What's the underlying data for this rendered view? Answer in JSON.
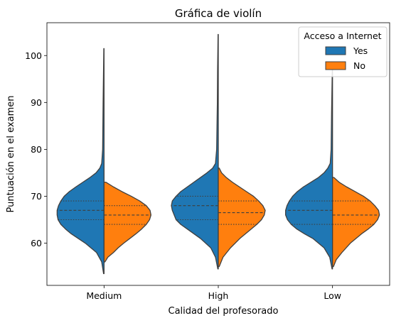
{
  "chart_data": {
    "type": "violin",
    "title": "Gráfica de violín",
    "xlabel": "Calidad del profesorado",
    "ylabel": "Puntuación en el examen",
    "categories": [
      "Medium",
      "High",
      "Low"
    ],
    "ylim": [
      51,
      107
    ],
    "yticks": [
      60,
      70,
      80,
      90,
      100
    ],
    "grid": false,
    "split": true,
    "inner": "quartile",
    "legend": {
      "title": "Acceso a Internet",
      "placement": "top-right",
      "entries": [
        {
          "label": "Yes",
          "color": "#1f77b4"
        },
        {
          "label": "No",
          "color": "#ff7f0e"
        }
      ]
    },
    "series": [
      {
        "name": "Yes",
        "color": "#1f77b4",
        "side": "left",
        "violins": [
          {
            "category": "Medium",
            "min": 53.5,
            "q1": 65,
            "median": 67,
            "q3": 69,
            "max": 101.5,
            "profile": [
              [
                53.5,
                0.01
              ],
              [
                56,
                0.05
              ],
              [
                58,
                0.16
              ],
              [
                60,
                0.4
              ],
              [
                62,
                0.7
              ],
              [
                63,
                0.82
              ],
              [
                64,
                0.92
              ],
              [
                65,
                0.98
              ],
              [
                66,
                1.0
              ],
              [
                67,
                1.0
              ],
              [
                68,
                0.97
              ],
              [
                69,
                0.92
              ],
              [
                70,
                0.85
              ],
              [
                71,
                0.74
              ],
              [
                72,
                0.6
              ],
              [
                73,
                0.45
              ],
              [
                74,
                0.3
              ],
              [
                75,
                0.17
              ],
              [
                76,
                0.09
              ],
              [
                77,
                0.05
              ],
              [
                80,
                0.03
              ],
              [
                90,
                0.02
              ],
              [
                101.5,
                0.005
              ]
            ]
          },
          {
            "category": "High",
            "min": 54.5,
            "q1": 65,
            "median": 68,
            "q3": 70,
            "max": 104.5,
            "profile": [
              [
                54.5,
                0.01
              ],
              [
                57,
                0.06
              ],
              [
                59,
                0.16
              ],
              [
                61,
                0.38
              ],
              [
                63,
                0.66
              ],
              [
                64,
                0.8
              ],
              [
                65,
                0.9
              ],
              [
                66,
                0.94
              ],
              [
                67,
                0.98
              ],
              [
                68,
                1.0
              ],
              [
                69,
                0.98
              ],
              [
                70,
                0.9
              ],
              [
                71,
                0.8
              ],
              [
                72,
                0.66
              ],
              [
                73,
                0.52
              ],
              [
                74,
                0.38
              ],
              [
                75,
                0.24
              ],
              [
                76,
                0.12
              ],
              [
                77,
                0.06
              ],
              [
                80,
                0.035
              ],
              [
                90,
                0.02
              ],
              [
                97,
                0.015
              ],
              [
                104.5,
                0.005
              ]
            ]
          },
          {
            "category": "Low",
            "min": 54.5,
            "q1": 64,
            "median": 67,
            "q3": 69,
            "max": 97,
            "profile": [
              [
                54.5,
                0.01
              ],
              [
                57,
                0.06
              ],
              [
                59,
                0.18
              ],
              [
                61,
                0.42
              ],
              [
                62,
                0.6
              ],
              [
                63,
                0.76
              ],
              [
                64,
                0.88
              ],
              [
                65,
                0.96
              ],
              [
                66,
                1.0
              ],
              [
                67,
                1.0
              ],
              [
                68,
                0.97
              ],
              [
                69,
                0.92
              ],
              [
                70,
                0.85
              ],
              [
                71,
                0.75
              ],
              [
                72,
                0.62
              ],
              [
                73,
                0.46
              ],
              [
                74,
                0.3
              ],
              [
                75,
                0.18
              ],
              [
                76,
                0.1
              ],
              [
                77,
                0.05
              ],
              [
                80,
                0.03
              ],
              [
                88,
                0.02
              ],
              [
                97,
                0.005
              ]
            ]
          }
        ]
      },
      {
        "name": "No",
        "color": "#ff7f0e",
        "side": "right",
        "violins": [
          {
            "category": "Medium",
            "min": 56,
            "q1": 64,
            "median": 66,
            "q3": 68,
            "max": 73,
            "profile": [
              [
                56,
                0.02
              ],
              [
                57,
                0.08
              ],
              [
                58,
                0.2
              ],
              [
                59,
                0.3
              ],
              [
                60,
                0.42
              ],
              [
                61,
                0.55
              ],
              [
                62,
                0.68
              ],
              [
                63,
                0.8
              ],
              [
                64,
                0.9
              ],
              [
                65,
                0.97
              ],
              [
                66,
                1.0
              ],
              [
                67,
                0.98
              ],
              [
                68,
                0.9
              ],
              [
                69,
                0.76
              ],
              [
                70,
                0.58
              ],
              [
                71,
                0.38
              ],
              [
                72,
                0.2
              ],
              [
                73,
                0.04
              ]
            ]
          },
          {
            "category": "High",
            "min": 55,
            "q1": 64,
            "median": 66.5,
            "q3": 69,
            "max": 76,
            "profile": [
              [
                55,
                0.02
              ],
              [
                57,
                0.1
              ],
              [
                59,
                0.26
              ],
              [
                61,
                0.46
              ],
              [
                63,
                0.7
              ],
              [
                64,
                0.82
              ],
              [
                65,
                0.92
              ],
              [
                66,
                0.98
              ],
              [
                67,
                1.0
              ],
              [
                68,
                0.95
              ],
              [
                69,
                0.86
              ],
              [
                70,
                0.75
              ],
              [
                71,
                0.6
              ],
              [
                72,
                0.45
              ],
              [
                73,
                0.3
              ],
              [
                74,
                0.17
              ],
              [
                75,
                0.07
              ],
              [
                76,
                0.02
              ]
            ]
          },
          {
            "category": "Low",
            "min": 55,
            "q1": 64,
            "median": 66,
            "q3": 69,
            "max": 74,
            "profile": [
              [
                55,
                0.02
              ],
              [
                56.5,
                0.08
              ],
              [
                58,
                0.2
              ],
              [
                60,
                0.38
              ],
              [
                62,
                0.62
              ],
              [
                63,
                0.76
              ],
              [
                64,
                0.88
              ],
              [
                65,
                0.96
              ],
              [
                66,
                1.0
              ],
              [
                67,
                0.98
              ],
              [
                68,
                0.9
              ],
              [
                69,
                0.8
              ],
              [
                70,
                0.66
              ],
              [
                71,
                0.48
              ],
              [
                72,
                0.3
              ],
              [
                73,
                0.14
              ],
              [
                74,
                0.03
              ]
            ]
          }
        ]
      }
    ]
  }
}
